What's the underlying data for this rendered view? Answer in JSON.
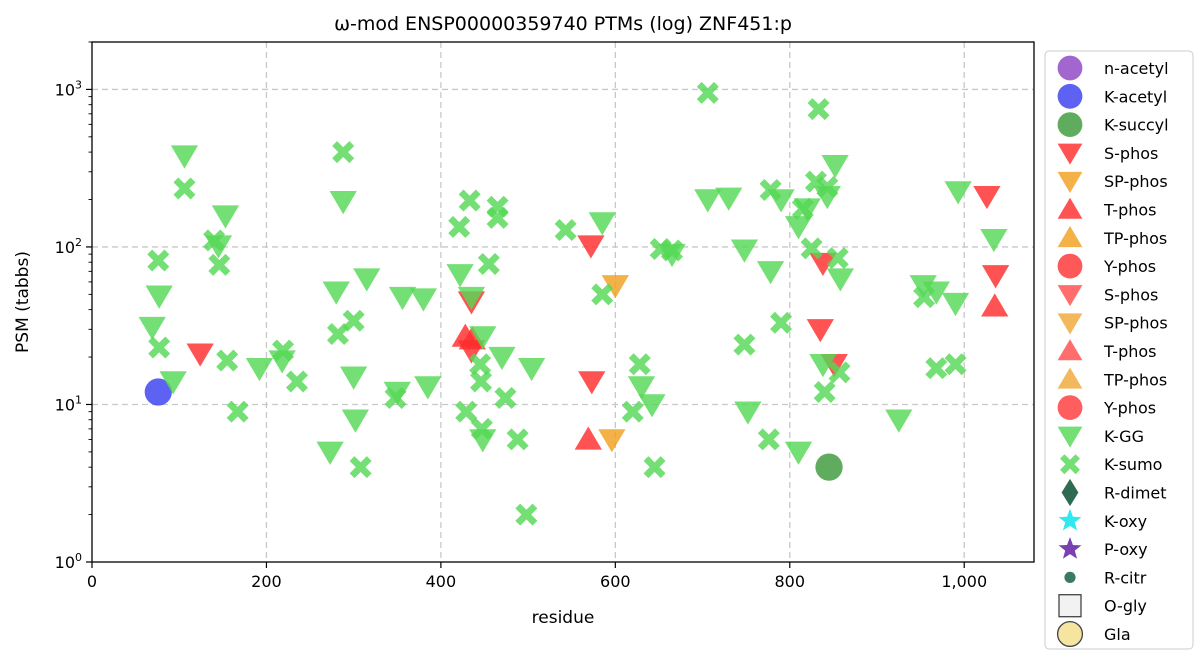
{
  "chart_data": {
    "type": "scatter",
    "title": "ω-mod ENSP00000359740 PTMs (log) ZNF451:p",
    "xlabel": "residue",
    "ylabel": "PSM (tabbs)",
    "xlim": [
      0,
      1080
    ],
    "ylim": [
      1,
      2000
    ],
    "y_scale": "log",
    "x_ticks": [
      {
        "value": 0,
        "label": "0"
      },
      {
        "value": 200,
        "label": "200"
      },
      {
        "value": 400,
        "label": "400"
      },
      {
        "value": 600,
        "label": "600"
      },
      {
        "value": 800,
        "label": "800"
      },
      {
        "value": 1000,
        "label": "1,000"
      }
    ],
    "y_ticks": [
      {
        "value": 1,
        "label": "10",
        "exp": "0"
      },
      {
        "value": 10,
        "label": "10",
        "exp": "1"
      },
      {
        "value": 100,
        "label": "10",
        "exp": "2"
      },
      {
        "value": 1000,
        "label": "10",
        "exp": "3"
      }
    ],
    "grid": true,
    "legend_position": "outside-right",
    "series": [
      {
        "name": "n-acetyl",
        "marker": "circle",
        "color": "#8e44c4",
        "points": []
      },
      {
        "name": "K-acetyl",
        "marker": "circle",
        "color": "#3a3ff0",
        "points": [
          [
            76,
            12
          ]
        ]
      },
      {
        "name": "K-succyl",
        "marker": "circle",
        "color": "#3c9a3c",
        "points": [
          [
            845,
            4
          ]
        ]
      },
      {
        "name": "S-phos",
        "marker": "triangle-down",
        "color": "#ff2d2d",
        "points": [
          [
            124,
            21
          ],
          [
            435,
            22
          ],
          [
            435,
            45
          ],
          [
            572,
            102
          ],
          [
            573,
            14
          ],
          [
            835,
            30
          ],
          [
            838,
            79
          ],
          [
            851,
            18
          ],
          [
            1026,
            210
          ],
          [
            1036,
            66
          ]
        ]
      },
      {
        "name": "SP-phos",
        "marker": "triangle-down",
        "color": "#f0a020",
        "points": [
          [
            600,
            57
          ],
          [
            596,
            6
          ]
        ]
      },
      {
        "name": "T-phos",
        "marker": "triangle-up",
        "color": "#ff2d2d",
        "points": [
          [
            428,
            27
          ],
          [
            436,
            26
          ],
          [
            569,
            6
          ],
          [
            1035,
            42
          ]
        ]
      },
      {
        "name": "TP-phos",
        "marker": "triangle-up",
        "color": "#f0a020",
        "points": []
      },
      {
        "name": "Y-phos",
        "marker": "circle",
        "color": "#ff3333",
        "points": []
      },
      {
        "name": "S-phos",
        "marker": "triangle-down",
        "color": "#ff4d4d",
        "points": []
      },
      {
        "name": "SP-phos",
        "marker": "triangle-down",
        "color": "#f0a838",
        "points": []
      },
      {
        "name": "T-phos",
        "marker": "triangle-up",
        "color": "#ff4d4d",
        "points": []
      },
      {
        "name": "TP-phos",
        "marker": "triangle-up",
        "color": "#f0a838",
        "points": []
      },
      {
        "name": "Y-phos",
        "marker": "circle",
        "color": "#ff3b3b",
        "points": []
      },
      {
        "name": "K-GG",
        "marker": "triangle-down",
        "color": "#55d855",
        "points": [
          [
            69,
            31
          ],
          [
            77,
            49
          ],
          [
            93,
            14
          ],
          [
            106,
            380
          ],
          [
            153,
            158
          ],
          [
            145,
            102
          ],
          [
            192,
            17
          ],
          [
            218,
            19
          ],
          [
            280,
            52
          ],
          [
            288,
            195
          ],
          [
            300,
            15
          ],
          [
            302,
            8
          ],
          [
            315,
            63
          ],
          [
            273,
            5
          ],
          [
            356,
            48
          ],
          [
            380,
            47
          ],
          [
            385,
            13
          ],
          [
            350,
            12
          ],
          [
            422,
            67
          ],
          [
            435,
            48
          ],
          [
            448,
            27
          ],
          [
            470,
            20
          ],
          [
            448,
            6
          ],
          [
            504,
            17
          ],
          [
            585,
            143
          ],
          [
            630,
            13
          ],
          [
            642,
            10
          ],
          [
            665,
            90
          ],
          [
            706,
            200
          ],
          [
            730,
            205
          ],
          [
            748,
            96
          ],
          [
            752,
            9
          ],
          [
            778,
            70
          ],
          [
            790,
            200
          ],
          [
            810,
            5
          ],
          [
            810,
            135
          ],
          [
            820,
            175
          ],
          [
            838,
            18
          ],
          [
            843,
            210
          ],
          [
            852,
            330
          ],
          [
            858,
            63
          ],
          [
            925,
            8
          ],
          [
            953,
            57
          ],
          [
            968,
            52
          ],
          [
            990,
            44
          ],
          [
            993,
            225
          ],
          [
            1034,
            112
          ]
        ]
      },
      {
        "name": "K-sumo",
        "marker": "x",
        "color": "#55d855",
        "points": [
          [
            76,
            82
          ],
          [
            77,
            23
          ],
          [
            106,
            235
          ],
          [
            140,
            110
          ],
          [
            146,
            77
          ],
          [
            155,
            19
          ],
          [
            167,
            9
          ],
          [
            219,
            22
          ],
          [
            235,
            14
          ],
          [
            282,
            28
          ],
          [
            288,
            400
          ],
          [
            300,
            34
          ],
          [
            308,
            4
          ],
          [
            348,
            11
          ],
          [
            421,
            134
          ],
          [
            429,
            9
          ],
          [
            433,
            197
          ],
          [
            445,
            18
          ],
          [
            446,
            14
          ],
          [
            447,
            7
          ],
          [
            455,
            78
          ],
          [
            465,
            180
          ],
          [
            465,
            153
          ],
          [
            474,
            11
          ],
          [
            488,
            6
          ],
          [
            498,
            2
          ],
          [
            543,
            128
          ],
          [
            585,
            50
          ],
          [
            628,
            18
          ],
          [
            620,
            9
          ],
          [
            645,
            4
          ],
          [
            652,
            97
          ],
          [
            665,
            95
          ],
          [
            706,
            950
          ],
          [
            748,
            24
          ],
          [
            776,
            6
          ],
          [
            778,
            230
          ],
          [
            790,
            33
          ],
          [
            815,
            175
          ],
          [
            825,
            98
          ],
          [
            830,
            260
          ],
          [
            833,
            750
          ],
          [
            840,
            12
          ],
          [
            843,
            240
          ],
          [
            855,
            85
          ],
          [
            857,
            16
          ],
          [
            954,
            48
          ],
          [
            968,
            17
          ],
          [
            990,
            18
          ]
        ]
      },
      {
        "name": "R-dimet",
        "marker": "diamond",
        "color": "#2e6b50",
        "points": []
      },
      {
        "name": "K-oxy",
        "marker": "star",
        "color": "#30e8f0",
        "points": []
      },
      {
        "name": "P-oxy",
        "marker": "star",
        "color": "#7a3fb0",
        "points": []
      },
      {
        "name": "R-citr",
        "marker": "small-circle",
        "color": "#3a7a60",
        "points": []
      },
      {
        "name": "O-gly",
        "marker": "square-open",
        "color": "#dddddd",
        "points": []
      },
      {
        "name": "Gla",
        "marker": "circle-open",
        "color": "#f5e5a0",
        "points": []
      }
    ]
  }
}
